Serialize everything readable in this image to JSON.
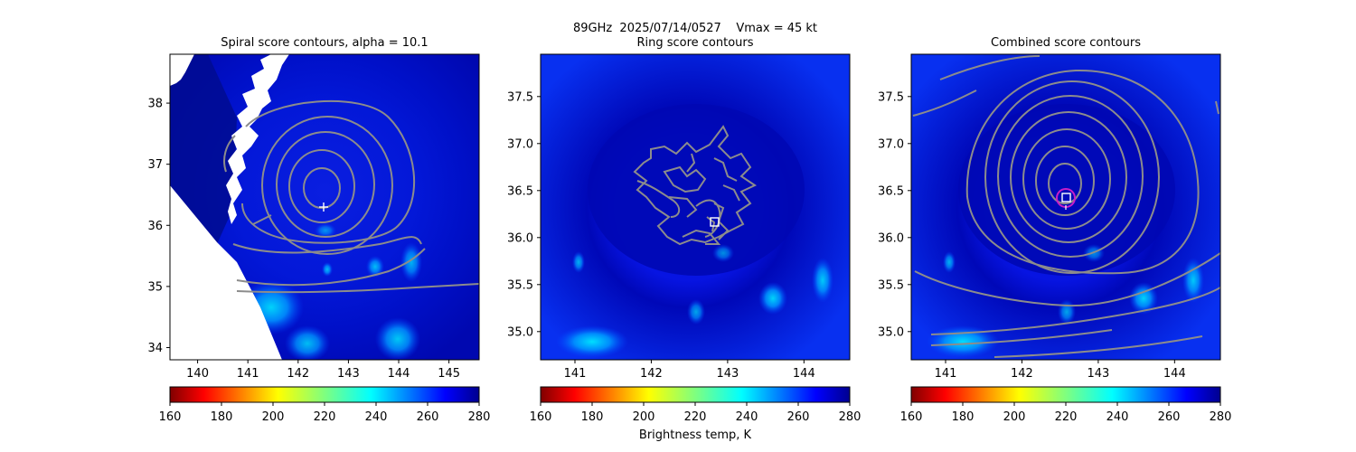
{
  "suptitle": {
    "line1": "89GHz  2025/07/14/0527    Vmax = 45 kt",
    "line2": "Ring score contours"
  },
  "colorbar_label": "Brightness temp, K",
  "colors": {
    "contour": "#8c8c8c",
    "marker_white": "#ffffff",
    "circle_magenta": "#c81ec8",
    "background_field": "jet colormap, mostly dark blue (~270-280 K)"
  },
  "chart_data": [
    {
      "type": "heatmap",
      "title": "Spiral score contours, alpha = 10.1",
      "xlabel": "",
      "ylabel": "",
      "xlim": [
        139.45,
        145.6
      ],
      "ylim": [
        33.8,
        38.8
      ],
      "xticks": [
        "140",
        "141",
        "142",
        "143",
        "144",
        "145"
      ],
      "yticks": [
        "34",
        "35",
        "36",
        "37",
        "38"
      ],
      "colorbar": {
        "cmap": "jet_r",
        "range": [
          160,
          280
        ],
        "ticks": [
          "160",
          "180",
          "200",
          "220",
          "240",
          "260",
          "280"
        ]
      },
      "no_data_region": "white swath edge on left/lower-left",
      "marker": {
        "symbol": "plus",
        "x": 142.5,
        "y": 36.3
      },
      "contour_center": {
        "x": 142.45,
        "y": 36.6
      }
    },
    {
      "type": "heatmap",
      "title": "Ring score contours",
      "xlabel": "",
      "ylabel": "",
      "xlim": [
        140.55,
        144.6
      ],
      "ylim": [
        34.7,
        37.95
      ],
      "xticks": [
        "141",
        "142",
        "143",
        "144"
      ],
      "yticks": [
        "35.0",
        "35.5",
        "36.0",
        "36.5",
        "37.0",
        "37.5"
      ],
      "colorbar": {
        "cmap": "jet_r",
        "range": [
          160,
          280
        ],
        "ticks": [
          "160",
          "180",
          "200",
          "220",
          "240",
          "260",
          "280"
        ]
      },
      "marker": {
        "symbol": "square",
        "x": 142.8,
        "y": 36.15
      }
    },
    {
      "type": "heatmap",
      "title": "Combined score contours",
      "xlabel": "",
      "ylabel": "",
      "xlim": [
        140.55,
        144.6
      ],
      "ylim": [
        34.7,
        37.95
      ],
      "xticks": [
        "141",
        "142",
        "143",
        "144"
      ],
      "yticks": [
        "35.0",
        "35.5",
        "36.0",
        "36.5",
        "37.0",
        "37.5"
      ],
      "colorbar": {
        "cmap": "jet_r",
        "range": [
          160,
          280
        ],
        "ticks": [
          "160",
          "180",
          "200",
          "220",
          "240",
          "260",
          "280"
        ]
      },
      "marker": {
        "symbol": "square",
        "x": 142.55,
        "y": 36.4
      },
      "circle": {
        "x": 142.55,
        "y": 36.4
      },
      "contour_center": {
        "x": 142.5,
        "y": 36.55
      }
    }
  ]
}
